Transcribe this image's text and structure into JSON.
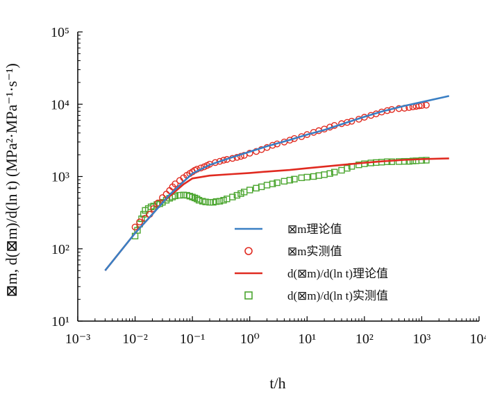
{
  "chart_data": {
    "type": "scatter",
    "xscale": "log",
    "yscale": "log",
    "xlim": [
      0.001,
      10000
    ],
    "ylim": [
      10,
      100000
    ],
    "grid": false,
    "legend_position": "center-right",
    "xlabel": "t/h",
    "ylabel": "⊠m, d(⊠m)/d(ln t) (MPa²·MPa⁻¹·s⁻¹)",
    "x_tick_labels": [
      "10⁻³",
      "10⁻²",
      "10⁻¹",
      "10⁰",
      "10¹",
      "10²",
      "10³",
      "10⁴"
    ],
    "y_tick_labels": [
      "10¹",
      "10²",
      "10³",
      "10⁴",
      "10⁵"
    ],
    "x_tick_values": [
      0.001,
      0.01,
      0.1,
      1,
      10,
      100,
      1000,
      10000
    ],
    "y_tick_values": [
      10,
      100,
      1000,
      10000,
      100000
    ],
    "series": [
      {
        "name": "⊠m理论值",
        "kind": "line",
        "color": "#3a7fc4",
        "x": [
          0.003,
          0.01,
          0.02,
          0.04,
          0.07,
          0.1,
          0.2,
          0.5,
          1,
          2,
          5,
          10,
          20,
          50,
          100,
          200,
          500,
          1000,
          3000
        ],
        "y": [
          50,
          165,
          300,
          560,
          850,
          1100,
          1450,
          1850,
          2200,
          2620,
          3200,
          3800,
          4400,
          5600,
          6700,
          7900,
          9500,
          10700,
          13000
        ]
      },
      {
        "name": "⊠m实测值",
        "kind": "circle",
        "color": "#e02a20",
        "x": [
          0.01,
          0.012,
          0.015,
          0.018,
          0.021,
          0.025,
          0.03,
          0.035,
          0.04,
          0.045,
          0.05,
          0.06,
          0.07,
          0.08,
          0.09,
          0.1,
          0.11,
          0.12,
          0.14,
          0.16,
          0.18,
          0.2,
          0.25,
          0.3,
          0.35,
          0.4,
          0.5,
          0.6,
          0.7,
          0.8,
          1,
          1.3,
          1.6,
          2,
          2.5,
          3,
          4,
          5,
          6,
          8,
          10,
          13,
          16,
          20,
          25,
          30,
          40,
          50,
          60,
          80,
          100,
          130,
          160,
          200,
          250,
          300,
          400,
          500,
          600,
          700,
          800,
          900,
          1000,
          1200
        ],
        "y": [
          200,
          235,
          265,
          300,
          360,
          430,
          510,
          570,
          640,
          720,
          790,
          880,
          960,
          1040,
          1100,
          1160,
          1220,
          1260,
          1310,
          1360,
          1420,
          1480,
          1560,
          1620,
          1680,
          1720,
          1780,
          1840,
          1900,
          1960,
          2100,
          2220,
          2360,
          2520,
          2700,
          2820,
          3000,
          3180,
          3350,
          3560,
          3800,
          4080,
          4300,
          4530,
          4820,
          5080,
          5380,
          5600,
          5820,
          6200,
          6600,
          7000,
          7350,
          7800,
          8150,
          8450,
          8700,
          8800,
          9000,
          9200,
          9350,
          9500,
          9600,
          9700
        ]
      },
      {
        "name": "d(⊠m)/d(ln t)理论值",
        "kind": "line",
        "color": "#e02a20",
        "x": [
          0.003,
          0.01,
          0.02,
          0.03,
          0.05,
          0.07,
          0.1,
          0.2,
          0.5,
          1,
          2,
          5,
          10,
          20,
          50,
          100,
          200,
          500,
          1000,
          3000
        ],
        "y": [
          50,
          165,
          300,
          440,
          620,
          780,
          940,
          1030,
          1080,
          1120,
          1170,
          1230,
          1300,
          1370,
          1470,
          1550,
          1620,
          1700,
          1740,
          1780
        ]
      },
      {
        "name": "d(⊠m)/d(ln t)实测值",
        "kind": "square",
        "color": "#4aa52e",
        "x": [
          0.01,
          0.011,
          0.012,
          0.013,
          0.014,
          0.015,
          0.017,
          0.019,
          0.021,
          0.024,
          0.027,
          0.03,
          0.035,
          0.04,
          0.045,
          0.05,
          0.06,
          0.07,
          0.08,
          0.09,
          0.1,
          0.11,
          0.12,
          0.13,
          0.15,
          0.17,
          0.2,
          0.23,
          0.26,
          0.3,
          0.35,
          0.4,
          0.5,
          0.6,
          0.7,
          0.8,
          1,
          1.3,
          1.6,
          2,
          2.5,
          3,
          4,
          5,
          6,
          8,
          10,
          13,
          16,
          20,
          25,
          30,
          40,
          50,
          60,
          80,
          100,
          130,
          160,
          200,
          250,
          300,
          400,
          500,
          600,
          700,
          800,
          1000,
          1200
        ],
        "y": [
          150,
          180,
          220,
          260,
          300,
          340,
          360,
          380,
          390,
          410,
          420,
          440,
          470,
          500,
          520,
          540,
          550,
          555,
          550,
          535,
          520,
          505,
          490,
          470,
          455,
          445,
          440,
          440,
          450,
          455,
          470,
          490,
          520,
          550,
          580,
          610,
          650,
          690,
          720,
          760,
          790,
          820,
          860,
          890,
          920,
          960,
          980,
          1000,
          1030,
          1060,
          1100,
          1150,
          1220,
          1300,
          1380,
          1450,
          1500,
          1540,
          1560,
          1580,
          1600,
          1600,
          1610,
          1620,
          1620,
          1640,
          1650,
          1670,
          1680
        ]
      }
    ]
  }
}
